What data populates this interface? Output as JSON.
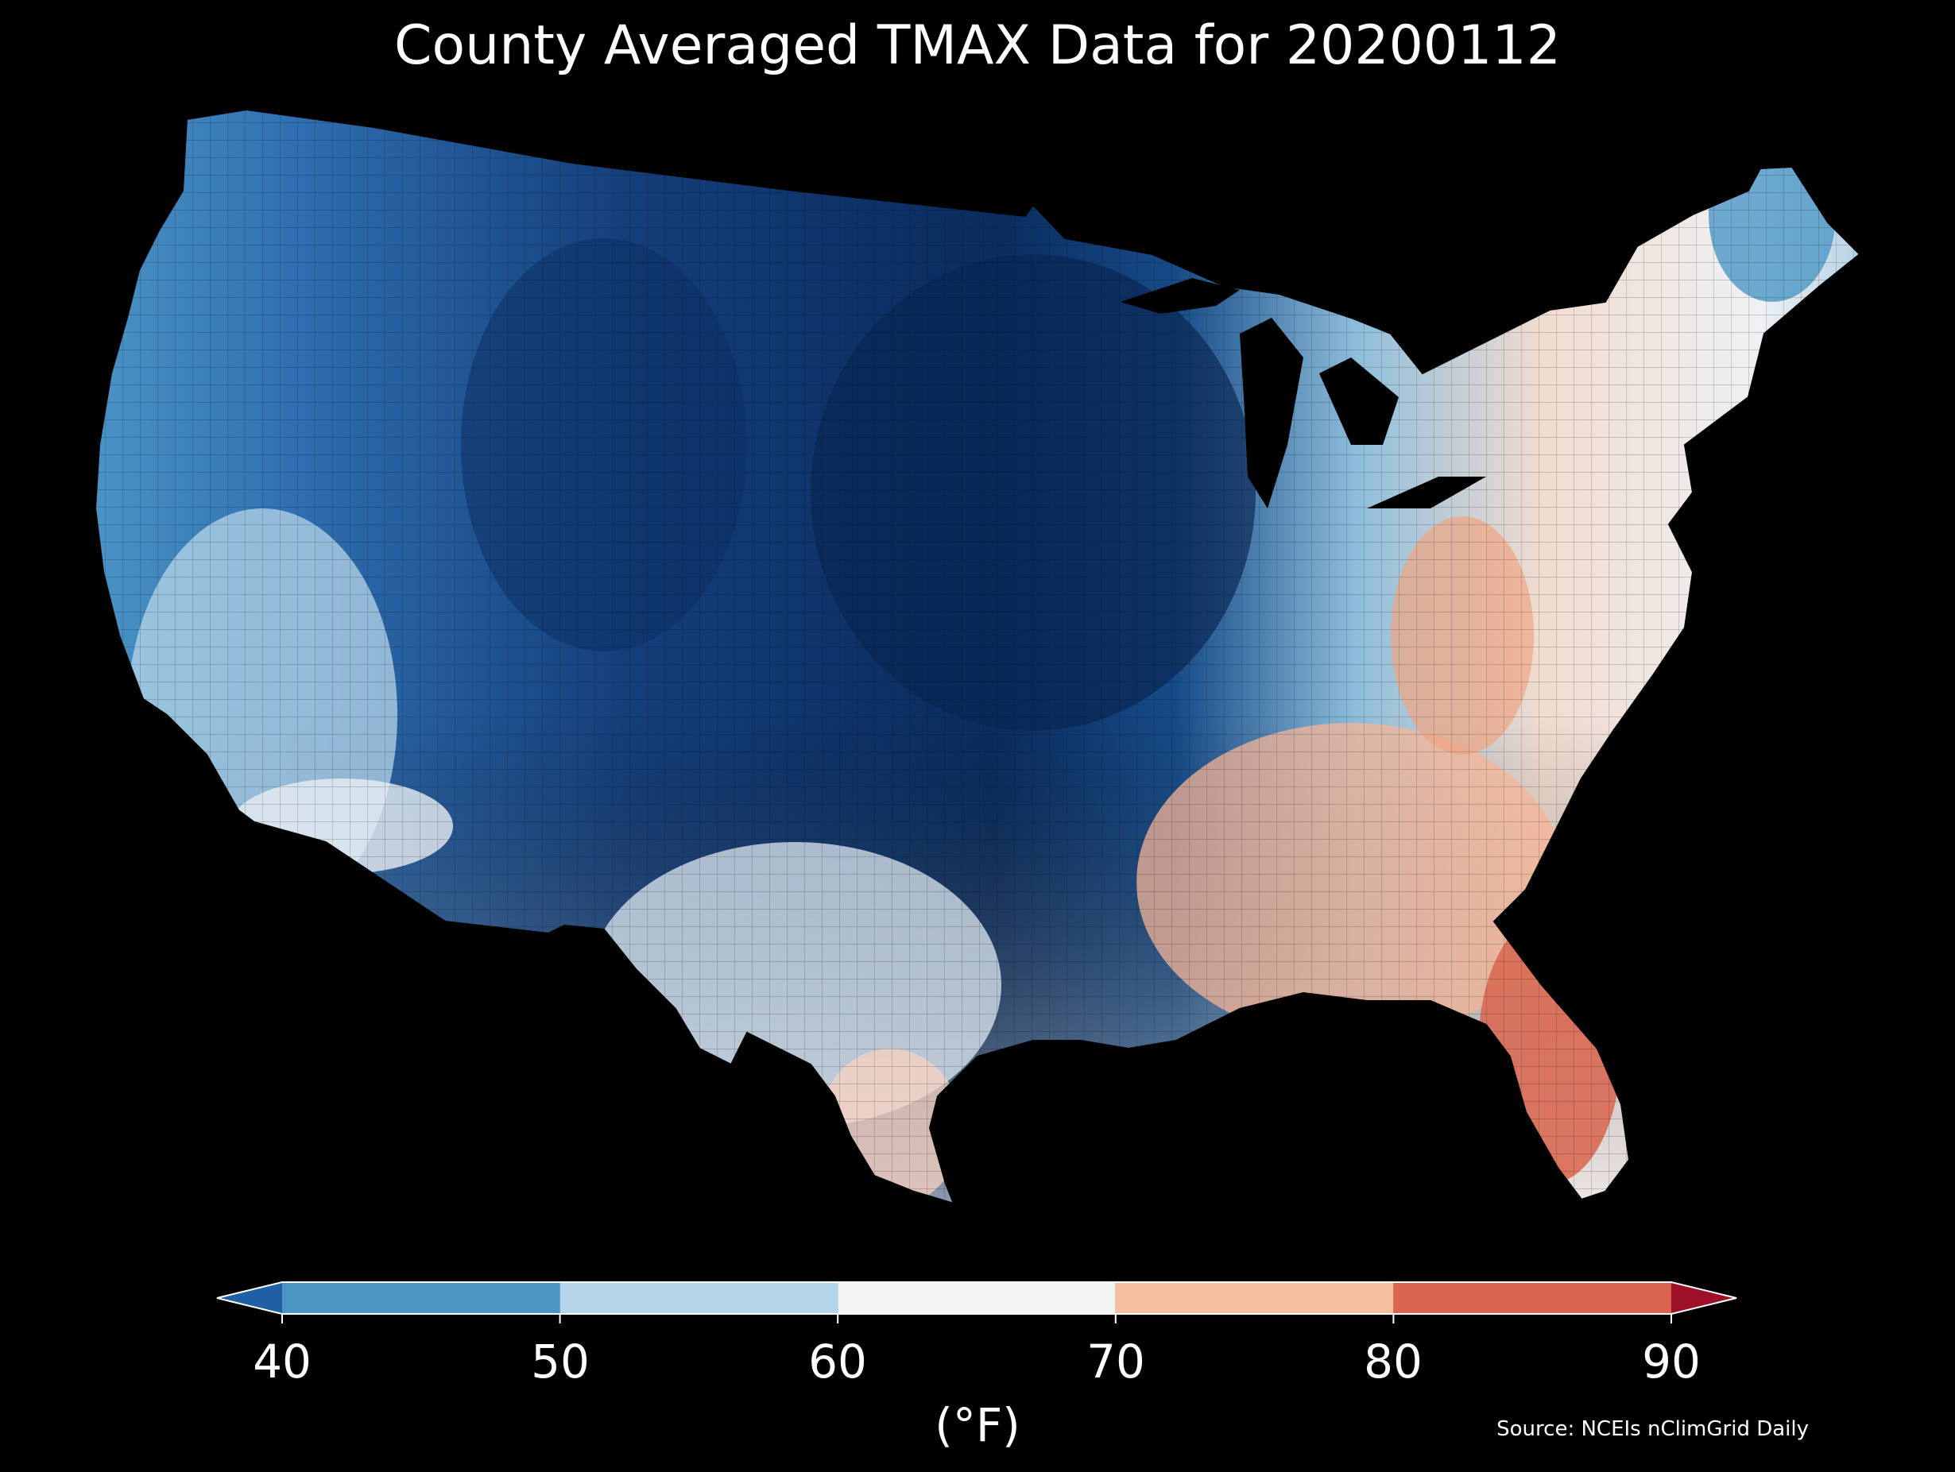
{
  "title": "County Averaged TMAX Data for 20200112",
  "map": {
    "region": "contiguous United States",
    "variable": "TMAX",
    "date": "20200112",
    "colormap": "RdBu_r (diverging blue-white-red)",
    "background": "#000000",
    "county_outlines": "#000000"
  },
  "colorbar": {
    "unit": "(°F)",
    "ticks": [
      "40",
      "50",
      "60",
      "70",
      "80",
      "90"
    ],
    "extend": "both",
    "bins": [
      {
        "range": "<40",
        "color": "#1f5fa4"
      },
      {
        "range": "40-50",
        "color": "#4c96c6"
      },
      {
        "range": "50-60",
        "color": "#b5d5e8"
      },
      {
        "range": "60-70",
        "color": "#f4f4f4"
      },
      {
        "range": "70-80",
        "color": "#f8bea0"
      },
      {
        "range": "80-90",
        "color": "#da6352"
      },
      {
        "range": ">90",
        "color": "#9d1027"
      }
    ]
  },
  "source": "Source: NCEIs nClimGrid Daily"
}
